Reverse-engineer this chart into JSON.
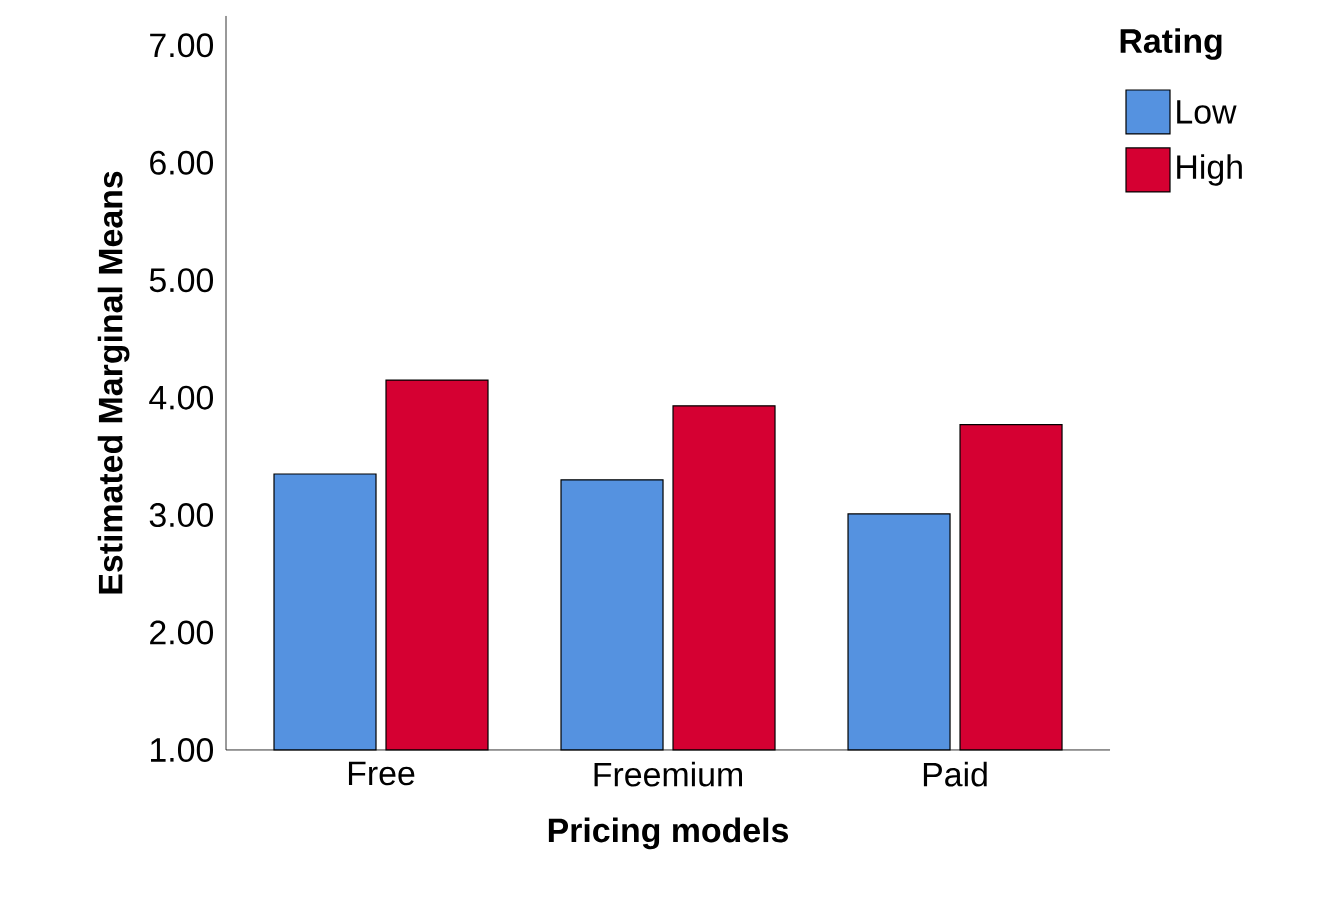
{
  "chart_data": {
    "type": "bar",
    "xlabel": "Pricing models",
    "ylabel": "Estimated Marginal Means",
    "legend_title": "Rating",
    "categories": [
      "Free",
      "Freemium",
      "Paid"
    ],
    "series": [
      {
        "name": "Low",
        "color": "#5592e0",
        "values": [
          3.35,
          3.3,
          3.01
        ]
      },
      {
        "name": "High",
        "color": "#d50032",
        "values": [
          4.15,
          3.93,
          3.77
        ]
      }
    ],
    "ylim": [
      1,
      7.25
    ],
    "yticks": [
      {
        "value": 1,
        "label": "1.00"
      },
      {
        "value": 2,
        "label": "2.00"
      },
      {
        "value": 3,
        "label": "3.00"
      },
      {
        "value": 4,
        "label": "4.00"
      },
      {
        "value": 5,
        "label": "5.00"
      },
      {
        "value": 6,
        "label": "6.00"
      },
      {
        "value": 7,
        "label": "7.00"
      }
    ],
    "grid": false,
    "legend": "top right"
  }
}
